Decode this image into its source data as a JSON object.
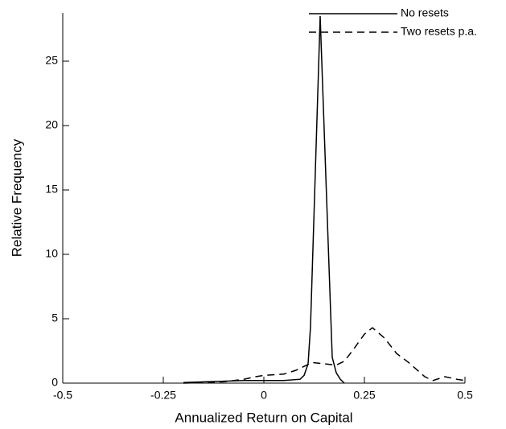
{
  "chart_data": {
    "type": "line",
    "x_label": "Annualized Return on Capital",
    "y_label": "Relative Frequency",
    "xlim": [
      -0.5,
      0.5
    ],
    "xticks": [
      -0.5,
      -0.25,
      0,
      0.25,
      0.5
    ],
    "ylim": [
      0,
      28.75
    ],
    "yticks": [
      0,
      5,
      10,
      15,
      20,
      25
    ],
    "legend": "upper right",
    "series": [
      {
        "name": "No resets",
        "color": "#000000",
        "dash": "solid",
        "x": [
          -0.2,
          -0.1,
          -0.05,
          0,
          0.05,
          0.09,
          0.1,
          0.11,
          0.116,
          0.14,
          0.166,
          0.17,
          0.18,
          0.19,
          0.2
        ],
        "values": [
          0.05,
          0.15,
          0.2,
          0.2,
          0.2,
          0.3,
          0.6,
          1.5,
          4.4,
          28.5,
          5.5,
          2,
          0.8,
          0.3,
          0
        ]
      },
      {
        "name": "Two resets p.a.",
        "color": "#000000",
        "dash": "dashed",
        "x": [
          -0.2,
          -0.1,
          -0.05,
          -0.02,
          0,
          0.05,
          0.08,
          0.1,
          0.12,
          0.15,
          0.18,
          0.2,
          0.22,
          0.25,
          0.27,
          0.3,
          0.33,
          0.36,
          0.4,
          0.42,
          0.45,
          0.48,
          0.5
        ],
        "values": [
          0,
          0.1,
          0.3,
          0.5,
          0.6,
          0.7,
          1.0,
          1.3,
          1.6,
          1.5,
          1.4,
          1.7,
          2.5,
          3.8,
          4.3,
          3.5,
          2.3,
          1.6,
          0.5,
          0.2,
          0.5,
          0.3,
          0.2
        ]
      }
    ]
  }
}
